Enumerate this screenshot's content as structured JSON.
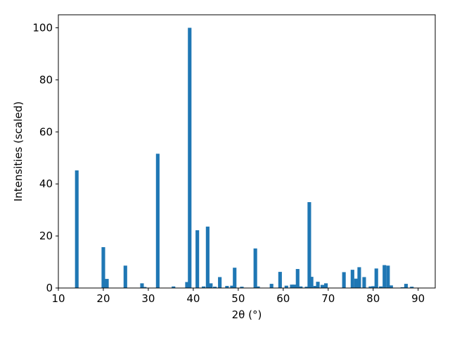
{
  "chart_data": {
    "type": "bar",
    "xlabel": "2θ (°)",
    "ylabel": "Intensities (scaled)",
    "color": "#1f77b4",
    "x": [
      14.1,
      20.0,
      20.8,
      24.9,
      28.6,
      29.2,
      32.1,
      35.6,
      38.6,
      39.2,
      40.9,
      42.3,
      43.2,
      43.9,
      44.8,
      45.9,
      47.5,
      48.6,
      49.2,
      50.8,
      53.8,
      54.4,
      57.4,
      59.3,
      60.7,
      61.9,
      62.5,
      63.2,
      63.9,
      65.2,
      65.8,
      66.3,
      67.1,
      67.7,
      68.7,
      69.5,
      73.5,
      75.4,
      76.2,
      76.9,
      78.0,
      79.4,
      80.0,
      80.7,
      81.7,
      82.5,
      83.3,
      84.0,
      86.5,
      87.3,
      88.6
    ],
    "values": [
      45.2,
      15.7,
      3.5,
      8.6,
      1.8,
      0.4,
      51.6,
      0.6,
      2.3,
      100,
      22.2,
      0.6,
      23.6,
      1.8,
      0.5,
      4.2,
      0.8,
      0.9,
      7.8,
      0.5,
      15.2,
      0.6,
      1.6,
      6.2,
      0.9,
      1.3,
      1.3,
      7.3,
      0.6,
      0.5,
      33,
      4.3,
      0.8,
      2.4,
      1.2,
      1.8,
      6.1,
      7.0,
      3.6,
      8.0,
      4.2,
      0.6,
      0.7,
      7.5,
      0.6,
      8.8,
      8.6,
      1.0,
      0.3,
      1.6,
      0.5
    ],
    "xlim": [
      10,
      93.8
    ],
    "ylim": [
      0,
      105
    ],
    "xticks": [
      10,
      20,
      30,
      40,
      50,
      60,
      70,
      80,
      90
    ],
    "yticks": [
      0,
      20,
      40,
      60,
      80,
      100
    ]
  }
}
